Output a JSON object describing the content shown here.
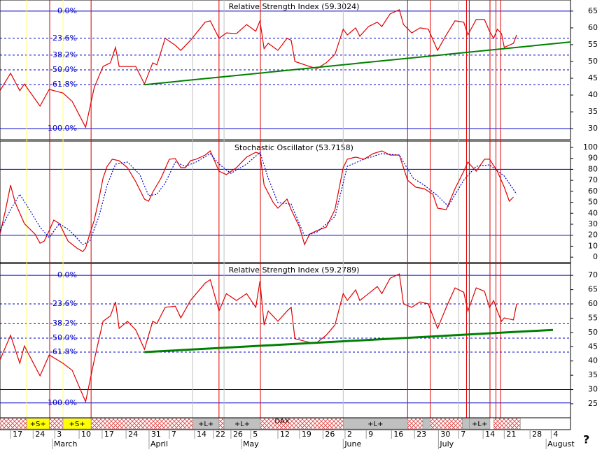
{
  "chart_data": [
    {
      "type": "line",
      "title": "Relative Strength Index (59.3024)",
      "xlim": [
        0,
        124
      ],
      "ylim": [
        26.7,
        68.3
      ],
      "yticks": [
        30,
        35,
        40,
        45,
        50,
        55,
        60,
        65
      ],
      "levels": [
        {
          "value": 65,
          "label": "0.0%",
          "dash": false
        },
        {
          "value": 56.9,
          "label": "23.6%",
          "dash": true
        },
        {
          "value": 51.9,
          "label": "38.2%",
          "dash": true
        },
        {
          "value": 47.5,
          "label": "50.0%",
          "dash": true
        },
        {
          "value": 43.1,
          "label": "61.8%",
          "dash": true
        },
        {
          "value": 30,
          "label": "100.0%",
          "dash": false
        }
      ],
      "trendline": {
        "color": "#008000",
        "x": [
          31.4,
          124
        ],
        "values": [
          43.1,
          55.8
        ]
      },
      "series": [
        {
          "color": "#e00000",
          "dash": false,
          "x": [
            0,
            2.3,
            4.3,
            5.3,
            8.7,
            10.7,
            13.7,
            15.7,
            18.6,
            20.5,
            22.4,
            24,
            25.1,
            25.9,
            27.7,
            29.5,
            31.4,
            33.2,
            34.1,
            35.9,
            38.1,
            39.3,
            41.4,
            44.6,
            45.7,
            47.6,
            49.2,
            51.4,
            53.6,
            55.6,
            56.5,
            57.4,
            58.3,
            60.4,
            62.4,
            63.3,
            64.1,
            67.3,
            68.9,
            70.9,
            72.8,
            74.6,
            75.5,
            77.3,
            78.2,
            80.1,
            82,
            83,
            84.8,
            86.8,
            87.7,
            89.5,
            91.3,
            93.1,
            95.1,
            97,
            98.9,
            100.8,
            101.7,
            103.5,
            105.3,
            106.4,
            107.3,
            108.1,
            109,
            109.6,
            111.6,
            112.3
          ],
          "values": [
            41.3,
            46.5,
            41.3,
            43.3,
            36.7,
            41.7,
            40.6,
            38.1,
            30.4,
            42.3,
            48.5,
            49.6,
            54.2,
            48.5,
            48.5,
            48.5,
            43.3,
            49.6,
            49,
            56.9,
            54.8,
            53.3,
            56.3,
            61.7,
            62.1,
            56.9,
            58.5,
            58.3,
            61,
            59,
            62.1,
            53.8,
            55.4,
            53.3,
            56.9,
            56.3,
            50,
            48.5,
            47.9,
            49.6,
            52.1,
            59.6,
            57.9,
            60,
            57.5,
            60.4,
            61.7,
            60.4,
            64.2,
            65.4,
            61,
            58.5,
            60,
            59.6,
            53.3,
            57.9,
            62.1,
            61.7,
            57.9,
            62.5,
            62.5,
            59,
            56.9,
            59.6,
            58.3,
            54.2,
            55.4,
            57.9
          ]
        }
      ]
    },
    {
      "type": "line",
      "title": "Stochastic Oscillator (53.7158)",
      "xlim": [
        0,
        124
      ],
      "ylim": [
        -5,
        105.7
      ],
      "yticks": [
        0,
        10,
        20,
        30,
        40,
        50,
        60,
        70,
        80,
        90,
        100
      ],
      "hlines": [
        80,
        20
      ],
      "series": [
        {
          "color": "#e00000",
          "dash": false,
          "x": [
            0,
            1.2,
            2.3,
            3.3,
            5.3,
            7.6,
            8.7,
            9.6,
            10.7,
            11.7,
            12.9,
            14.8,
            16.7,
            18,
            18.6,
            19.5,
            20.5,
            21.5,
            22.4,
            23.3,
            24.4,
            25.9,
            27.7,
            29.5,
            31.4,
            32.3,
            33.2,
            35,
            36.8,
            38.1,
            39.3,
            40.3,
            41.4,
            42.6,
            44.6,
            45.7,
            47.6,
            49.2,
            51.4,
            53.6,
            55.6,
            56.5,
            57.4,
            59.4,
            60.4,
            62.4,
            63.3,
            65.1,
            66.2,
            67.3,
            68.9,
            70.9,
            72.8,
            74.6,
            75.5,
            77.3,
            79.1,
            81.1,
            83,
            84.8,
            86.8,
            88.6,
            90.4,
            92.2,
            94.1,
            95.1,
            97,
            98.9,
            100.8,
            101.7,
            103.5,
            105.3,
            106.4,
            108.1,
            109.6,
            110.7,
            111.6
          ],
          "values": [
            21,
            43,
            65.6,
            49.7,
            30.6,
            21,
            12.7,
            14.6,
            24.2,
            33.8,
            30.6,
            14.6,
            8.3,
            5.1,
            8.3,
            21,
            33.8,
            52.9,
            72,
            82.8,
            89.2,
            87.9,
            81.5,
            68.8,
            52.9,
            51,
            59.2,
            72,
            89.2,
            89.8,
            81.5,
            81.5,
            87.9,
            89.2,
            93,
            96.8,
            78.3,
            75.2,
            81.5,
            91.1,
            95.5,
            94.3,
            65.6,
            49.7,
            44.6,
            52.9,
            43.3,
            27.4,
            11.5,
            21,
            24.2,
            27.4,
            43.3,
            81.5,
            89.2,
            91.1,
            89.2,
            94.3,
            96.8,
            93,
            93,
            70.1,
            63.7,
            62.4,
            57.3,
            44.6,
            43.3,
            62.4,
            78.3,
            86.6,
            78.3,
            89.2,
            89.2,
            78.3,
            63.7,
            51,
            54.8
          ]
        },
        {
          "color": "#0000cc",
          "dash": true,
          "x": [
            0,
            2.3,
            4.3,
            6.4,
            8.7,
            10.7,
            12.9,
            15.2,
            18,
            19.5,
            21.5,
            23.3,
            25.1,
            27.7,
            30.4,
            32.3,
            34.1,
            35.9,
            38.1,
            40.3,
            42.6,
            45.7,
            47.6,
            50.2,
            53.6,
            56.5,
            58.3,
            60.4,
            63.3,
            66.2,
            68.9,
            72.8,
            75.5,
            79.1,
            83,
            86.8,
            89.8,
            92.2,
            95.1,
            97.4,
            100.8,
            103.5,
            106.4,
            109.6,
            112.3
          ],
          "values": [
            24.2,
            43.3,
            57.3,
            43.3,
            27.4,
            17.8,
            30.6,
            24.2,
            11.5,
            14.6,
            36.9,
            65.6,
            84.7,
            86.6,
            75.2,
            56,
            57.3,
            67.5,
            86.6,
            82.8,
            86.6,
            94.3,
            84.7,
            76.4,
            84.7,
            95.5,
            72,
            49.7,
            48.4,
            19.1,
            22.9,
            36.9,
            82.8,
            89.2,
            94.3,
            93,
            72,
            65.6,
            56,
            46.5,
            70.1,
            82.8,
            84.1,
            73.9,
            57.3
          ]
        }
      ]
    },
    {
      "type": "line",
      "title": "Relative Strength Index (59.2789)",
      "xlim": [
        0,
        124
      ],
      "ylim": [
        20.1,
        74.2
      ],
      "yticks": [
        25,
        30,
        35,
        40,
        45,
        50,
        55,
        60,
        65,
        70
      ],
      "levels": [
        {
          "value": 70,
          "label": "0.0%",
          "dash": false
        },
        {
          "value": 60,
          "label": "23.6%",
          "dash": true
        },
        {
          "value": 53.1,
          "label": "38.2%",
          "dash": true
        },
        {
          "value": 48,
          "label": "50.0%",
          "dash": true
        },
        {
          "value": 43.1,
          "label": "61.8%",
          "dash": true
        },
        {
          "value": 25.3,
          "label": "100.0%",
          "dash": false
        }
      ],
      "hlines": [
        30
      ],
      "trendline": {
        "color": "#008000",
        "x": [
          31.4,
          120.2
        ],
        "values": [
          43.1,
          50.9
        ]
      },
      "series": [
        {
          "color": "#e00000",
          "dash": false,
          "x": [
            0,
            2.3,
            4.3,
            5.3,
            8.7,
            10.7,
            13.7,
            15.7,
            18.6,
            20.5,
            22.4,
            24,
            25.1,
            25.9,
            27.7,
            29.5,
            31.4,
            33.2,
            34.1,
            35.9,
            38.1,
            39.3,
            41.4,
            44.6,
            45.7,
            47.6,
            49.2,
            51.4,
            53.6,
            55.6,
            56.5,
            57.4,
            58.3,
            60.4,
            62.4,
            63.3,
            64.1,
            67.3,
            68.9,
            70.9,
            72.8,
            74.6,
            75.5,
            77.3,
            78.2,
            80.1,
            82,
            83,
            84.8,
            86.8,
            87.7,
            89.5,
            91.3,
            93.1,
            95.1,
            97,
            98.9,
            100.8,
            101.7,
            103.5,
            105.3,
            106.4,
            107.3,
            108.1,
            109,
            109.6,
            111.6,
            112.3
          ],
          "values": [
            40.4,
            49,
            39.2,
            45.3,
            34.8,
            42.1,
            39.2,
            36.7,
            25.7,
            40.4,
            53.9,
            55.8,
            60.7,
            51.4,
            53.9,
            50.9,
            44.1,
            53.9,
            53.1,
            58.8,
            59.2,
            55.1,
            61.2,
            67.3,
            68.5,
            57.5,
            63.6,
            61.2,
            63.6,
            58.8,
            68,
            52.6,
            57.5,
            53.9,
            57.5,
            58.8,
            47.8,
            46.5,
            46.5,
            49,
            52.6,
            63.6,
            61.2,
            64.9,
            61.2,
            63.6,
            66.1,
            63.6,
            69,
            70.5,
            60,
            58.8,
            60.7,
            60,
            51.4,
            58.8,
            65.6,
            64.1,
            57.5,
            65.6,
            64.4,
            58.8,
            61.2,
            57.5,
            53.9,
            55.1,
            54.4,
            60
          ]
        }
      ],
      "xticks": [
        {
          "value": 2.3,
          "label": "17"
        },
        {
          "value": 7.2,
          "label": "24"
        },
        {
          "value": 11.9,
          "label": "3"
        },
        {
          "value": 17.2,
          "label": "10"
        },
        {
          "value": 22.2,
          "label": "17"
        },
        {
          "value": 27.4,
          "label": "24"
        },
        {
          "value": 32.4,
          "label": "31"
        },
        {
          "value": 36.8,
          "label": "7"
        },
        {
          "value": 42.3,
          "label": "14"
        },
        {
          "value": 46.4,
          "label": "22"
        },
        {
          "value": 50.2,
          "label": "26"
        },
        {
          "value": 54.5,
          "label": "5"
        },
        {
          "value": 60.4,
          "label": "12"
        },
        {
          "value": 65.1,
          "label": "19"
        },
        {
          "value": 70.2,
          "label": "26"
        },
        {
          "value": 75,
          "label": "2"
        },
        {
          "value": 79.6,
          "label": "9"
        },
        {
          "value": 85.1,
          "label": "16"
        },
        {
          "value": 90.1,
          "label": "23"
        },
        {
          "value": 95.3,
          "label": "30"
        },
        {
          "value": 99.7,
          "label": "7"
        },
        {
          "value": 105,
          "label": "14"
        },
        {
          "value": 109.6,
          "label": "21"
        },
        {
          "value": 115.2,
          "label": "28"
        },
        {
          "value": 119.8,
          "label": "4"
        }
      ],
      "months": [
        {
          "value": 11.4,
          "label": "March"
        },
        {
          "value": 32.4,
          "label": "April"
        },
        {
          "value": 52.5,
          "label": "May"
        },
        {
          "value": 74.6,
          "label": "June"
        },
        {
          "value": 95.3,
          "label": "July"
        },
        {
          "value": 118.7,
          "label": "August"
        }
      ]
    }
  ],
  "events": [
    {
      "color": "#ffff66",
      "x": [
        5.8,
        13.7
      ]
    },
    {
      "color": "#c0c0c0",
      "x": [
        41.9,
        48.7,
        74.6,
        99.7
      ]
    },
    {
      "color": "#dd0000",
      "x": [
        10.8,
        19.8,
        47.6,
        56.6,
        88.6,
        93.5,
        101.4,
        102,
        106.5,
        107.8,
        108.8
      ]
    }
  ],
  "band": {
    "title": "DAX",
    "segments": [
      {
        "start": 0,
        "end": 5.8,
        "fill": "hatch"
      },
      {
        "start": 5.8,
        "end": 10.7,
        "fill": "#ffff00",
        "label": "+S+"
      },
      {
        "start": 10.7,
        "end": 13.7,
        "fill": "hatch"
      },
      {
        "start": 13.7,
        "end": 19.8,
        "fill": "#ffff00",
        "label": "+S+"
      },
      {
        "start": 19.8,
        "end": 41.9,
        "fill": "hatch"
      },
      {
        "start": 41.9,
        "end": 47.6,
        "fill": "#c0c0c0",
        "label": "+L+"
      },
      {
        "start": 47.6,
        "end": 48.7,
        "fill": "hatch"
      },
      {
        "start": 48.7,
        "end": 56.6,
        "fill": "#c0c0c0",
        "label": "+L+"
      },
      {
        "start": 56.6,
        "end": 74.6,
        "fill": "hatch"
      },
      {
        "start": 74.6,
        "end": 88.6,
        "fill": "#c0c0c0",
        "label": "+L+"
      },
      {
        "start": 88.6,
        "end": 91.9,
        "fill": "hatch"
      },
      {
        "start": 91.9,
        "end": 93.5,
        "fill": "#c0c0c0"
      },
      {
        "start": 93.5,
        "end": 100.5,
        "fill": "hatch"
      },
      {
        "start": 100.5,
        "end": 102,
        "fill": "#c0c0c0"
      },
      {
        "start": 102,
        "end": 106.5,
        "fill": "#c0c0c0",
        "label": "+L+"
      },
      {
        "start": 107.3,
        "end": 113.1,
        "fill": "hatch"
      }
    ]
  },
  "help": "?"
}
